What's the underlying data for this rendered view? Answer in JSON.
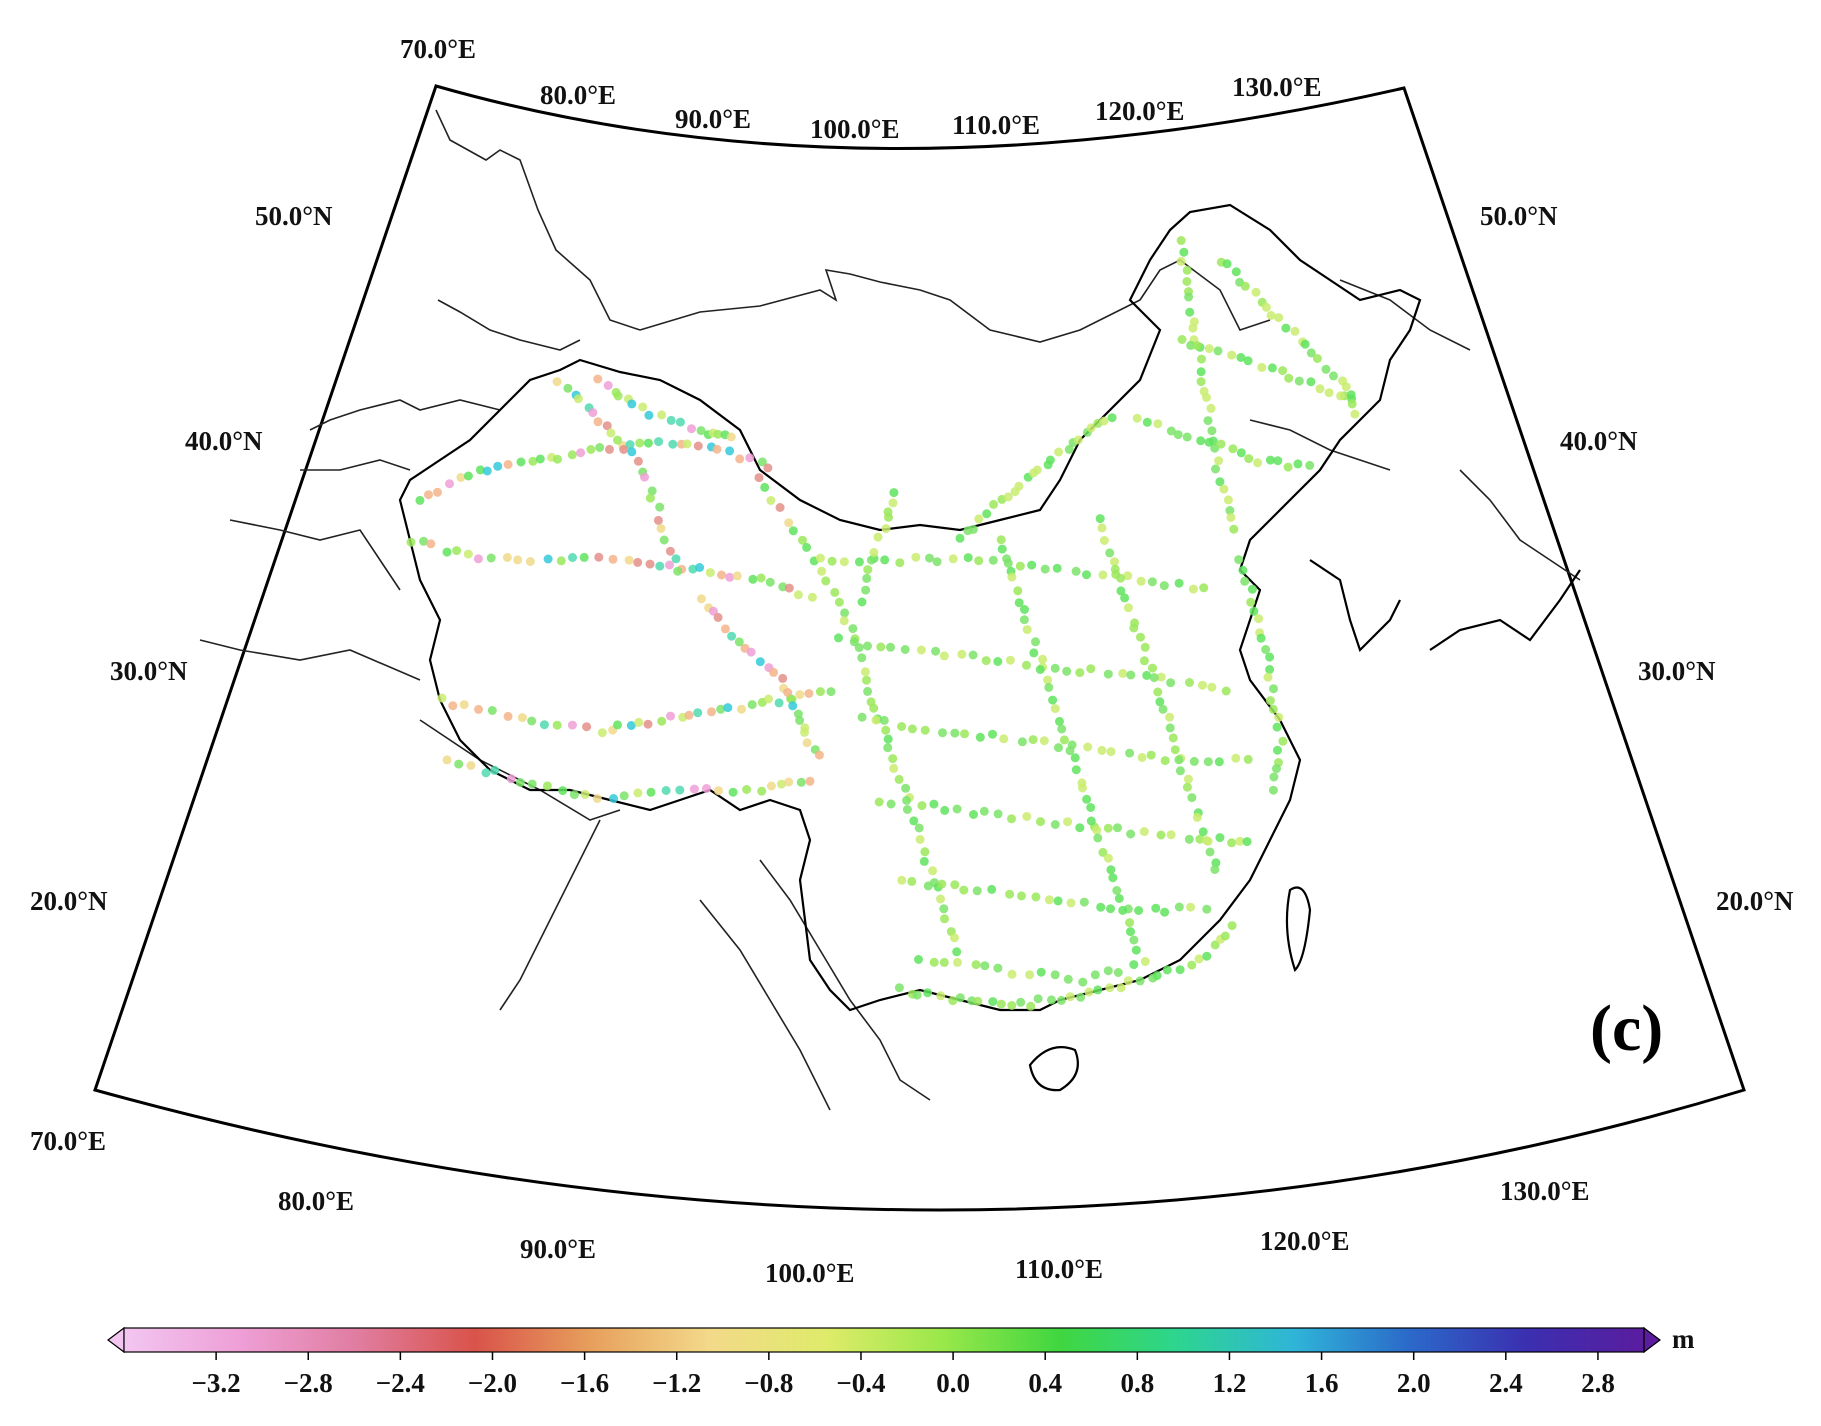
{
  "panel_label": "(c)",
  "colorbar": {
    "unit": "m",
    "min": -3.6,
    "max": 3.0,
    "ticks": [
      "−3.2",
      "−2.8",
      "−2.4",
      "−2.0",
      "−1.6",
      "−1.2",
      "−0.8",
      "−0.4",
      "0.0",
      "0.4",
      "0.8",
      "1.2",
      "1.6",
      "2.0",
      "2.4",
      "2.8"
    ],
    "colors": [
      "#f2c6f0",
      "#ee9fd6",
      "#e07da0",
      "#d9534a",
      "#e7a05c",
      "#f3d98a",
      "#dfeb6a",
      "#99e84a",
      "#40d640",
      "#2dd58f",
      "#2fb5d8",
      "#2b69c9",
      "#3b2fb0",
      "#5a1d9e"
    ]
  },
  "graticule": {
    "top_lon_labels": [
      "70.0°E",
      "80.0°E",
      "90.0°E",
      "100.0°E",
      "110.0°E",
      "120.0°E",
      "130.0°E"
    ],
    "bottom_lon_labels": [
      "70.0°E",
      "80.0°E",
      "90.0°E",
      "100.0°E",
      "110.0°E",
      "120.0°E",
      "130.0°E"
    ],
    "left_lat_labels": [
      "50.0°N",
      "40.0°N",
      "30.0°N",
      "20.0°N"
    ],
    "right_lat_labels": [
      "50.0°N",
      "40.0°N",
      "30.0°N",
      "20.0°N"
    ]
  },
  "map_data": {
    "type": "scatter-map",
    "projection": "conic",
    "lon_range": [
      70,
      135
    ],
    "lat_range": [
      15,
      55
    ],
    "series_description_visible": false,
    "value_range": [
      -3.6,
      3.0
    ],
    "colors": {
      "coast": "#000000",
      "borders": "#222222",
      "china_fill": "#ffffff",
      "frame": "#000000"
    }
  }
}
